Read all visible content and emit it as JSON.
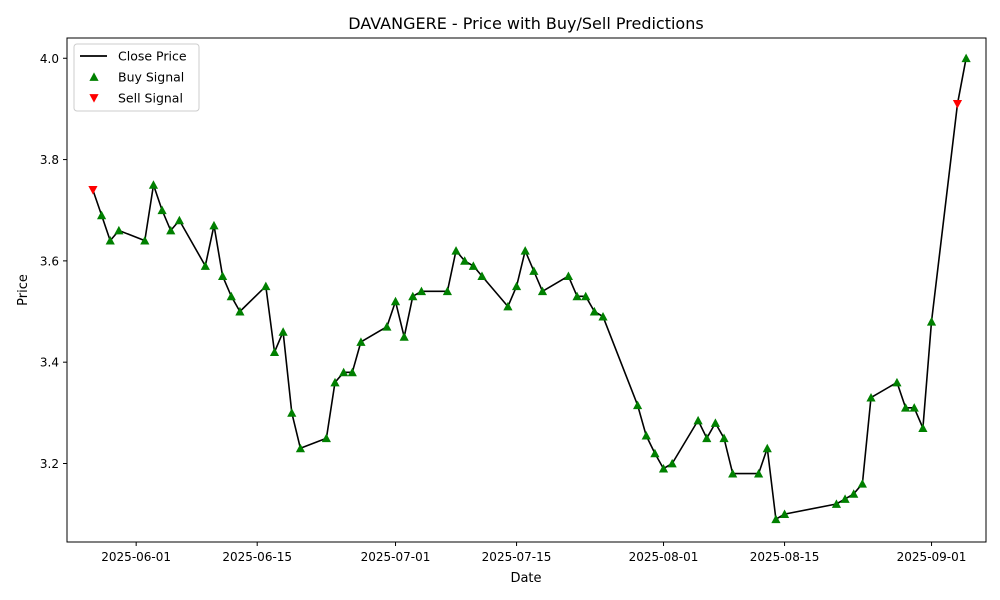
{
  "chart_data": {
    "type": "line",
    "title": "DAVANGERE - Price with Buy/Sell Predictions",
    "xlabel": "Date",
    "ylabel": "Price",
    "xlim": [
      "2025-05-24",
      "2025-09-04"
    ],
    "ylim": [
      3.045,
      4.04
    ],
    "x_ticks": [
      "2025-06-01",
      "2025-06-15",
      "2025-07-01",
      "2025-07-15",
      "2025-08-01",
      "2025-08-15",
      "2025-09-01"
    ],
    "y_ticks": [
      3.2,
      3.4,
      3.6,
      3.8,
      4.0
    ],
    "y_tick_labels": [
      "3.2",
      "3.4",
      "3.6",
      "3.8",
      "4.0"
    ],
    "grid": false,
    "legend_position": "upper-left",
    "legend": [
      {
        "label": "Close Price",
        "kind": "line",
        "color": "#000000"
      },
      {
        "label": "Buy Signal",
        "kind": "triangle-up",
        "color": "#008000"
      },
      {
        "label": "Sell Signal",
        "kind": "triangle-down",
        "color": "#ff0000"
      }
    ],
    "series": [
      {
        "name": "Close Price",
        "points": [
          [
            "2025-05-27",
            3.74
          ],
          [
            "2025-05-28",
            3.69
          ],
          [
            "2025-05-29",
            3.64
          ],
          [
            "2025-05-30",
            3.66
          ],
          [
            "2025-06-02",
            3.64
          ],
          [
            "2025-06-03",
            3.75
          ],
          [
            "2025-06-04",
            3.7
          ],
          [
            "2025-06-05",
            3.66
          ],
          [
            "2025-06-06",
            3.68
          ],
          [
            "2025-06-09",
            3.59
          ],
          [
            "2025-06-10",
            3.67
          ],
          [
            "2025-06-11",
            3.57
          ],
          [
            "2025-06-12",
            3.53
          ],
          [
            "2025-06-13",
            3.5
          ],
          [
            "2025-06-16",
            3.55
          ],
          [
            "2025-06-17",
            3.42
          ],
          [
            "2025-06-18",
            3.46
          ],
          [
            "2025-06-19",
            3.3
          ],
          [
            "2025-06-20",
            3.23
          ],
          [
            "2025-06-23",
            3.25
          ],
          [
            "2025-06-24",
            3.36
          ],
          [
            "2025-06-25",
            3.38
          ],
          [
            "2025-06-26",
            3.38
          ],
          [
            "2025-06-27",
            3.44
          ],
          [
            "2025-06-30",
            3.47
          ],
          [
            "2025-07-01",
            3.52
          ],
          [
            "2025-07-02",
            3.45
          ],
          [
            "2025-07-03",
            3.53
          ],
          [
            "2025-07-04",
            3.54
          ],
          [
            "2025-07-07",
            3.54
          ],
          [
            "2025-07-08",
            3.62
          ],
          [
            "2025-07-09",
            3.6
          ],
          [
            "2025-07-10",
            3.59
          ],
          [
            "2025-07-11",
            3.57
          ],
          [
            "2025-07-14",
            3.51
          ],
          [
            "2025-07-15",
            3.55
          ],
          [
            "2025-07-16",
            3.62
          ],
          [
            "2025-07-17",
            3.58
          ],
          [
            "2025-07-18",
            3.54
          ],
          [
            "2025-07-21",
            3.57
          ],
          [
            "2025-07-22",
            3.53
          ],
          [
            "2025-07-23",
            3.53
          ],
          [
            "2025-07-24",
            3.5
          ],
          [
            "2025-07-25",
            3.49
          ],
          [
            "2025-07-29",
            3.315
          ],
          [
            "2025-07-30",
            3.255
          ],
          [
            "2025-07-31",
            3.22
          ],
          [
            "2025-08-01",
            3.19
          ],
          [
            "2025-08-02",
            3.2
          ],
          [
            "2025-08-05",
            3.285
          ],
          [
            "2025-08-06",
            3.25
          ],
          [
            "2025-08-07",
            3.28
          ],
          [
            "2025-08-08",
            3.25
          ],
          [
            "2025-08-09",
            3.18
          ],
          [
            "2025-08-12",
            3.18
          ],
          [
            "2025-08-13",
            3.23
          ],
          [
            "2025-08-14",
            3.09
          ],
          [
            "2025-08-15",
            3.1
          ],
          [
            "2025-08-21",
            3.12
          ],
          [
            "2025-08-22",
            3.13
          ],
          [
            "2025-08-23",
            3.14
          ],
          [
            "2025-08-24",
            3.16
          ],
          [
            "2025-08-25",
            3.33
          ],
          [
            "2025-08-28",
            3.36
          ],
          [
            "2025-08-29",
            3.31
          ],
          [
            "2025-08-30",
            3.31
          ],
          [
            "2025-08-31",
            3.27
          ],
          [
            "2025-09-01",
            3.48
          ],
          [
            "2025-09-04",
            3.91
          ],
          [
            "2025-09-05",
            4.0
          ]
        ]
      },
      {
        "name": "Buy Signal",
        "points": [
          [
            "2025-05-28",
            3.69
          ],
          [
            "2025-05-29",
            3.64
          ],
          [
            "2025-05-30",
            3.66
          ],
          [
            "2025-06-02",
            3.64
          ],
          [
            "2025-06-03",
            3.75
          ],
          [
            "2025-06-04",
            3.7
          ],
          [
            "2025-06-05",
            3.66
          ],
          [
            "2025-06-06",
            3.68
          ],
          [
            "2025-06-09",
            3.59
          ],
          [
            "2025-06-10",
            3.67
          ],
          [
            "2025-06-11",
            3.57
          ],
          [
            "2025-06-12",
            3.53
          ],
          [
            "2025-06-13",
            3.5
          ],
          [
            "2025-06-16",
            3.55
          ],
          [
            "2025-06-17",
            3.42
          ],
          [
            "2025-06-18",
            3.46
          ],
          [
            "2025-06-19",
            3.3
          ],
          [
            "2025-06-20",
            3.23
          ],
          [
            "2025-06-23",
            3.25
          ],
          [
            "2025-06-24",
            3.36
          ],
          [
            "2025-06-25",
            3.38
          ],
          [
            "2025-06-26",
            3.38
          ],
          [
            "2025-06-27",
            3.44
          ],
          [
            "2025-06-30",
            3.47
          ],
          [
            "2025-07-01",
            3.52
          ],
          [
            "2025-07-02",
            3.45
          ],
          [
            "2025-07-03",
            3.53
          ],
          [
            "2025-07-04",
            3.54
          ],
          [
            "2025-07-07",
            3.54
          ],
          [
            "2025-07-08",
            3.62
          ],
          [
            "2025-07-09",
            3.6
          ],
          [
            "2025-07-10",
            3.59
          ],
          [
            "2025-07-11",
            3.57
          ],
          [
            "2025-07-14",
            3.51
          ],
          [
            "2025-07-15",
            3.55
          ],
          [
            "2025-07-16",
            3.62
          ],
          [
            "2025-07-17",
            3.58
          ],
          [
            "2025-07-18",
            3.54
          ],
          [
            "2025-07-21",
            3.57
          ],
          [
            "2025-07-22",
            3.53
          ],
          [
            "2025-07-23",
            3.53
          ],
          [
            "2025-07-24",
            3.5
          ],
          [
            "2025-07-25",
            3.49
          ],
          [
            "2025-07-29",
            3.315
          ],
          [
            "2025-07-30",
            3.255
          ],
          [
            "2025-07-31",
            3.22
          ],
          [
            "2025-08-01",
            3.19
          ],
          [
            "2025-08-02",
            3.2
          ],
          [
            "2025-08-05",
            3.285
          ],
          [
            "2025-08-06",
            3.25
          ],
          [
            "2025-08-07",
            3.28
          ],
          [
            "2025-08-08",
            3.25
          ],
          [
            "2025-08-09",
            3.18
          ],
          [
            "2025-08-12",
            3.18
          ],
          [
            "2025-08-13",
            3.23
          ],
          [
            "2025-08-14",
            3.09
          ],
          [
            "2025-08-15",
            3.1
          ],
          [
            "2025-08-21",
            3.12
          ],
          [
            "2025-08-22",
            3.13
          ],
          [
            "2025-08-23",
            3.14
          ],
          [
            "2025-08-24",
            3.16
          ],
          [
            "2025-08-25",
            3.33
          ],
          [
            "2025-08-28",
            3.36
          ],
          [
            "2025-08-29",
            3.31
          ],
          [
            "2025-08-30",
            3.31
          ],
          [
            "2025-08-31",
            3.27
          ],
          [
            "2025-09-01",
            3.48
          ],
          [
            "2025-09-05",
            4.0
          ]
        ]
      },
      {
        "name": "Sell Signal",
        "points": [
          [
            "2025-05-27",
            3.74
          ],
          [
            "2025-09-04",
            3.91
          ]
        ]
      }
    ]
  }
}
